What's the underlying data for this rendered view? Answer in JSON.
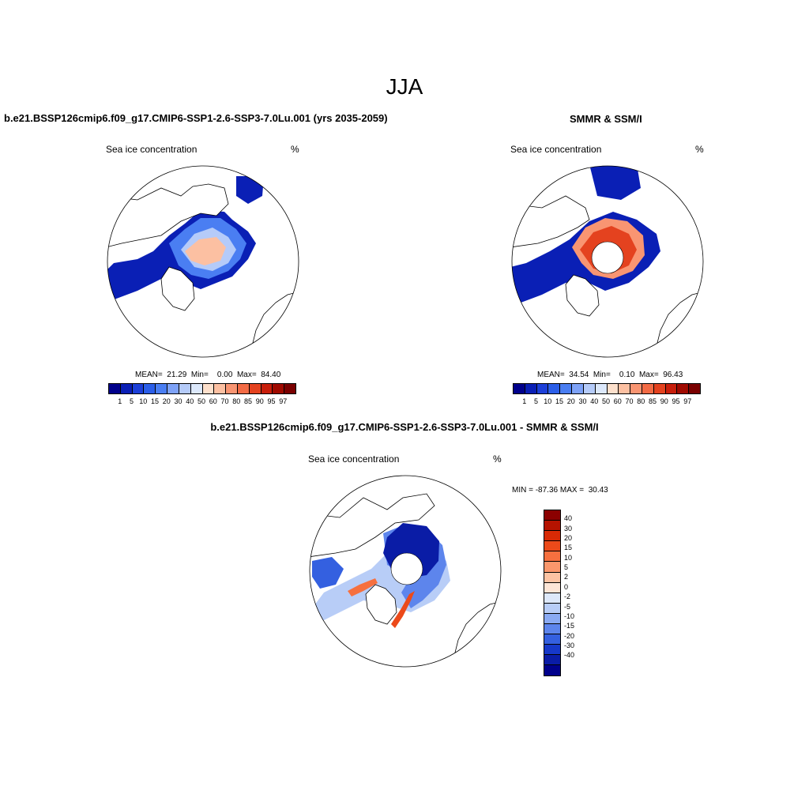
{
  "main_title": "JJA",
  "panels": {
    "model": {
      "title": "b.e21.BSSP126cmip6.f09_g17.CMIP6-SSP1-2.6-SSP3-7.0Lu.001 (yrs 2035-2059)",
      "subtitle": "Sea ice concentration",
      "units": "%",
      "stats": "MEAN=  21.29  Min=    0.00  Max=  84.40"
    },
    "obs": {
      "title": "SMMR & SSM/I",
      "subtitle": "Sea ice concentration",
      "units": "%",
      "stats": "MEAN=  34.54  Min=    0.10  Max=  96.43"
    },
    "diff": {
      "title": "b.e21.BSSP126cmip6.f09_g17.CMIP6-SSP1-2.6-SSP3-7.0Lu.001 - SMMR & SSM/I",
      "subtitle": "Sea ice concentration",
      "units": "%",
      "stats": "MIN = -87.36 MAX =  30.43"
    }
  },
  "colorbar_abs": {
    "labels": [
      "1",
      "5",
      "10",
      "15",
      "20",
      "30",
      "40",
      "50",
      "60",
      "70",
      "80",
      "85",
      "90",
      "95",
      "97"
    ],
    "colors": [
      "#00008b",
      "#0a1fb5",
      "#1c3fd8",
      "#2b5ee8",
      "#4a7ef2",
      "#7ea2f7",
      "#b5cbf9",
      "#dce8fb",
      "#fde0cc",
      "#fcc0a2",
      "#f99572",
      "#f36b45",
      "#e4421f",
      "#c81e0b",
      "#a00a00",
      "#7a0000"
    ]
  },
  "colorbar_diff": {
    "labels": [
      "40",
      "30",
      "20",
      "15",
      "10",
      "5",
      "2",
      "0",
      "-2",
      "-5",
      "-10",
      "-15",
      "-20",
      "-30",
      "-40"
    ],
    "colors": [
      "#8b0000",
      "#b51300",
      "#d82a05",
      "#ec4a1a",
      "#f6703f",
      "#fa976c",
      "#fcc3a3",
      "#fde5d6",
      "#dde8fa",
      "#b8cdf7",
      "#8aaaf3",
      "#5d85ec",
      "#3460e0",
      "#1638c9",
      "#0a1ca6",
      "#00008b"
    ]
  },
  "map_fields": {
    "model": [
      {
        "region": "central-arctic",
        "value": 60
      },
      {
        "region": "arctic-margin",
        "value": 40
      },
      {
        "region": "outer-ice",
        "value": 20
      },
      {
        "region": "hudson-bay",
        "value": 5
      },
      {
        "region": "greenland-sea",
        "value": 10
      }
    ],
    "obs": [
      {
        "region": "central-arctic",
        "value": 90
      },
      {
        "region": "arctic-margin",
        "value": 80
      },
      {
        "region": "outer-ice",
        "value": 15
      },
      {
        "region": "hudson-bay",
        "value": 5
      },
      {
        "region": "okhotsk",
        "value": 1
      }
    ],
    "diff": [
      {
        "region": "central-arctic",
        "value": -40
      },
      {
        "region": "canadian-archipelago",
        "value": -20
      },
      {
        "region": "beaufort-strip",
        "value": 15
      },
      {
        "region": "barents-strip",
        "value": 20
      },
      {
        "region": "margins",
        "value": -5
      }
    ]
  }
}
